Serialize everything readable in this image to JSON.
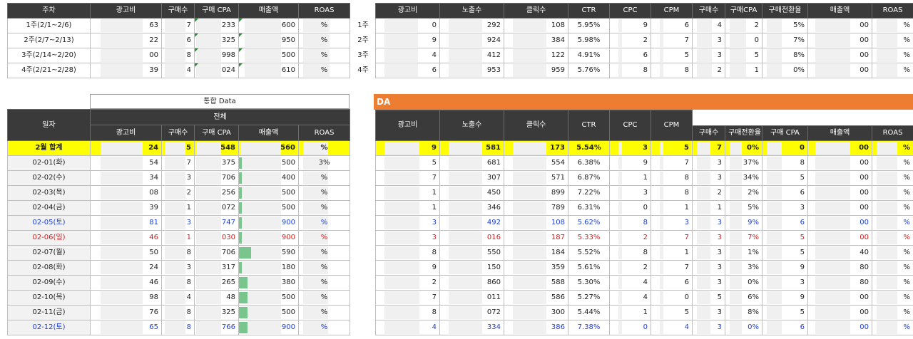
{
  "weekly_left": {
    "headers": [
      "주차",
      "광고비",
      "구매수",
      "구매 CPA",
      "매출액",
      "ROAS"
    ],
    "rows": [
      {
        "label": "1주(2/1~2/6)",
        "cost": "63",
        "purchases": "7",
        "cpa": "233",
        "revenue": "600",
        "roas": "%"
      },
      {
        "label": "2주(2/7~2/13)",
        "cost": "22",
        "purchases": "6",
        "cpa": "325",
        "revenue": "950",
        "roas": "%"
      },
      {
        "label": "3주(2/14~2/20)",
        "cost": "00",
        "purchases": "8",
        "cpa": "998",
        "revenue": "500",
        "roas": "%"
      },
      {
        "label": "4주(2/21~2/28)",
        "cost": "39",
        "purchases": "4",
        "cpa": "024",
        "revenue": "610",
        "roas": "%"
      }
    ]
  },
  "weekly_right": {
    "row_labels": [
      "1주",
      "2주",
      "3주",
      "4주"
    ],
    "headers": [
      "광고비",
      "노출수",
      "클릭수",
      "CTR",
      "CPC",
      "CPM",
      "구매수",
      "구매CPA",
      "구매전환율",
      "매출액",
      "ROAS"
    ],
    "rows": [
      [
        "0",
        "292",
        "108",
        "5.95%",
        "9",
        "6",
        "4",
        "2",
        "5%",
        "00",
        "%"
      ],
      [
        "9",
        "924",
        "384",
        "5.98%",
        "2",
        "7",
        "3",
        "0",
        "7%",
        "00",
        "%"
      ],
      [
        "4",
        "412",
        "122",
        "4.91%",
        "6",
        "5",
        "3",
        "5",
        "8%",
        "00",
        "%"
      ],
      [
        "6",
        "953",
        "959",
        "5.76%",
        "8",
        "8",
        "2",
        "1",
        "0%",
        "00",
        "%"
      ]
    ]
  },
  "daily_left": {
    "caption_top": "통합 Data",
    "caption_sub": "전체",
    "date_header": "일자",
    "headers": [
      "광고비",
      "구매수",
      "구매 CPA",
      "매출액",
      "ROAS"
    ],
    "total": {
      "label": "2월 합계",
      "cost": "24",
      "purchases": "5",
      "cpa": "548",
      "revenue": "560",
      "roas": "%"
    },
    "rows": [
      {
        "label": "02-01(화)",
        "day": "",
        "cost": "54",
        "purchases": "7",
        "cpa": "375",
        "revenue": "500",
        "roas": "3%",
        "bar": 0.05
      },
      {
        "label": "02-02(수)",
        "day": "",
        "cost": "34",
        "purchases": "3",
        "cpa": "706",
        "revenue": "400",
        "roas": "%",
        "bar": 0.05
      },
      {
        "label": "02-03(목)",
        "day": "",
        "cost": "08",
        "purchases": "2",
        "cpa": "256",
        "revenue": "500",
        "roas": "%",
        "bar": 0.05
      },
      {
        "label": "02-04(금)",
        "day": "",
        "cost": "39",
        "purchases": "1",
        "cpa": "072",
        "revenue": "500",
        "roas": "%",
        "bar": 0.05
      },
      {
        "label": "02-05(토)",
        "day": "sat",
        "cost": "81",
        "purchases": "3",
        "cpa": "747",
        "revenue": "900",
        "roas": "%",
        "bar": 0.05
      },
      {
        "label": "02-06(일)",
        "day": "sun",
        "cost": "46",
        "purchases": "1",
        "cpa": "030",
        "revenue": "900",
        "roas": "%",
        "bar": 0.05
      },
      {
        "label": "02-07(월)",
        "day": "",
        "cost": "50",
        "purchases": "8",
        "cpa": "706",
        "revenue": "590",
        "roas": "%",
        "bar": 0.2
      },
      {
        "label": "02-08(화)",
        "day": "",
        "cost": "24",
        "purchases": "3",
        "cpa": "317",
        "revenue": "180",
        "roas": "%",
        "bar": 0.05
      },
      {
        "label": "02-09(수)",
        "day": "",
        "cost": "46",
        "purchases": "8",
        "cpa": "265",
        "revenue": "380",
        "roas": "%",
        "bar": 0.14
      },
      {
        "label": "02-10(목)",
        "day": "",
        "cost": "98",
        "purchases": "4",
        "cpa": "48",
        "revenue": "500",
        "roas": "%",
        "bar": 0.14
      },
      {
        "label": "02-11(금)",
        "day": "",
        "cost": "76",
        "purchases": "8",
        "cpa": "325",
        "revenue": "500",
        "roas": "%",
        "bar": 0.14
      },
      {
        "label": "02-12(토)",
        "day": "sat",
        "cost": "65",
        "purchases": "8",
        "cpa": "766",
        "revenue": "900",
        "roas": "%",
        "bar": 0.14
      }
    ]
  },
  "daily_right": {
    "banner": "DA",
    "headers": [
      "광고비",
      "노출수",
      "클릭수",
      "CTR",
      "CPC",
      "CPM",
      "구매수",
      "구매전환율",
      "구매 CPA",
      "매출액",
      "ROAS"
    ],
    "total": [
      "9",
      "581",
      "173",
      "5.54%",
      "3",
      "5",
      "7",
      "0%",
      "0",
      "00",
      "%"
    ],
    "rows": [
      [
        "5",
        "681",
        "554",
        "6.38%",
        "9",
        "7",
        "3",
        "37%",
        "8",
        "00",
        "%"
      ],
      [
        "7",
        "307",
        "571",
        "6.87%",
        "1",
        "8",
        "3",
        "34%",
        "5",
        "00",
        "%"
      ],
      [
        "1",
        "450",
        "899",
        "7.22%",
        "3",
        "8",
        "2",
        "2%",
        "6",
        "00",
        "%"
      ],
      [
        "1",
        "346",
        "789",
        "6.31%",
        "0",
        "1",
        "1",
        "5%",
        "3",
        "00",
        "%"
      ],
      [
        "3",
        "492",
        "108",
        "5.62%",
        "8",
        "3",
        "3",
        "9%",
        "6",
        "00",
        "%"
      ],
      [
        "3",
        "016",
        "187",
        "5.33%",
        "2",
        "7",
        "3",
        "7%",
        "5",
        "00",
        "%"
      ],
      [
        "8",
        "550",
        "184",
        "5.52%",
        "8",
        "1",
        "3",
        "1%",
        "5",
        "40",
        "%"
      ],
      [
        "9",
        "150",
        "359",
        "5.61%",
        "2",
        "7",
        "3",
        "3%",
        "9",
        "80",
        "%"
      ],
      [
        "2",
        "860",
        "588",
        "5.30%",
        "4",
        "6",
        "3",
        "0%",
        "3",
        "80",
        "%"
      ],
      [
        "7",
        "011",
        "586",
        "5.27%",
        "4",
        "0",
        "5",
        "6%",
        "9",
        "00",
        "%"
      ],
      [
        "8",
        "072",
        "300",
        "5.44%",
        "1",
        "5",
        "3",
        "8%",
        "5",
        "00",
        "%"
      ],
      [
        "4",
        "334",
        "386",
        "7.38%",
        "0",
        "4",
        "3",
        "0%",
        "6",
        "00",
        "%"
      ]
    ]
  }
}
